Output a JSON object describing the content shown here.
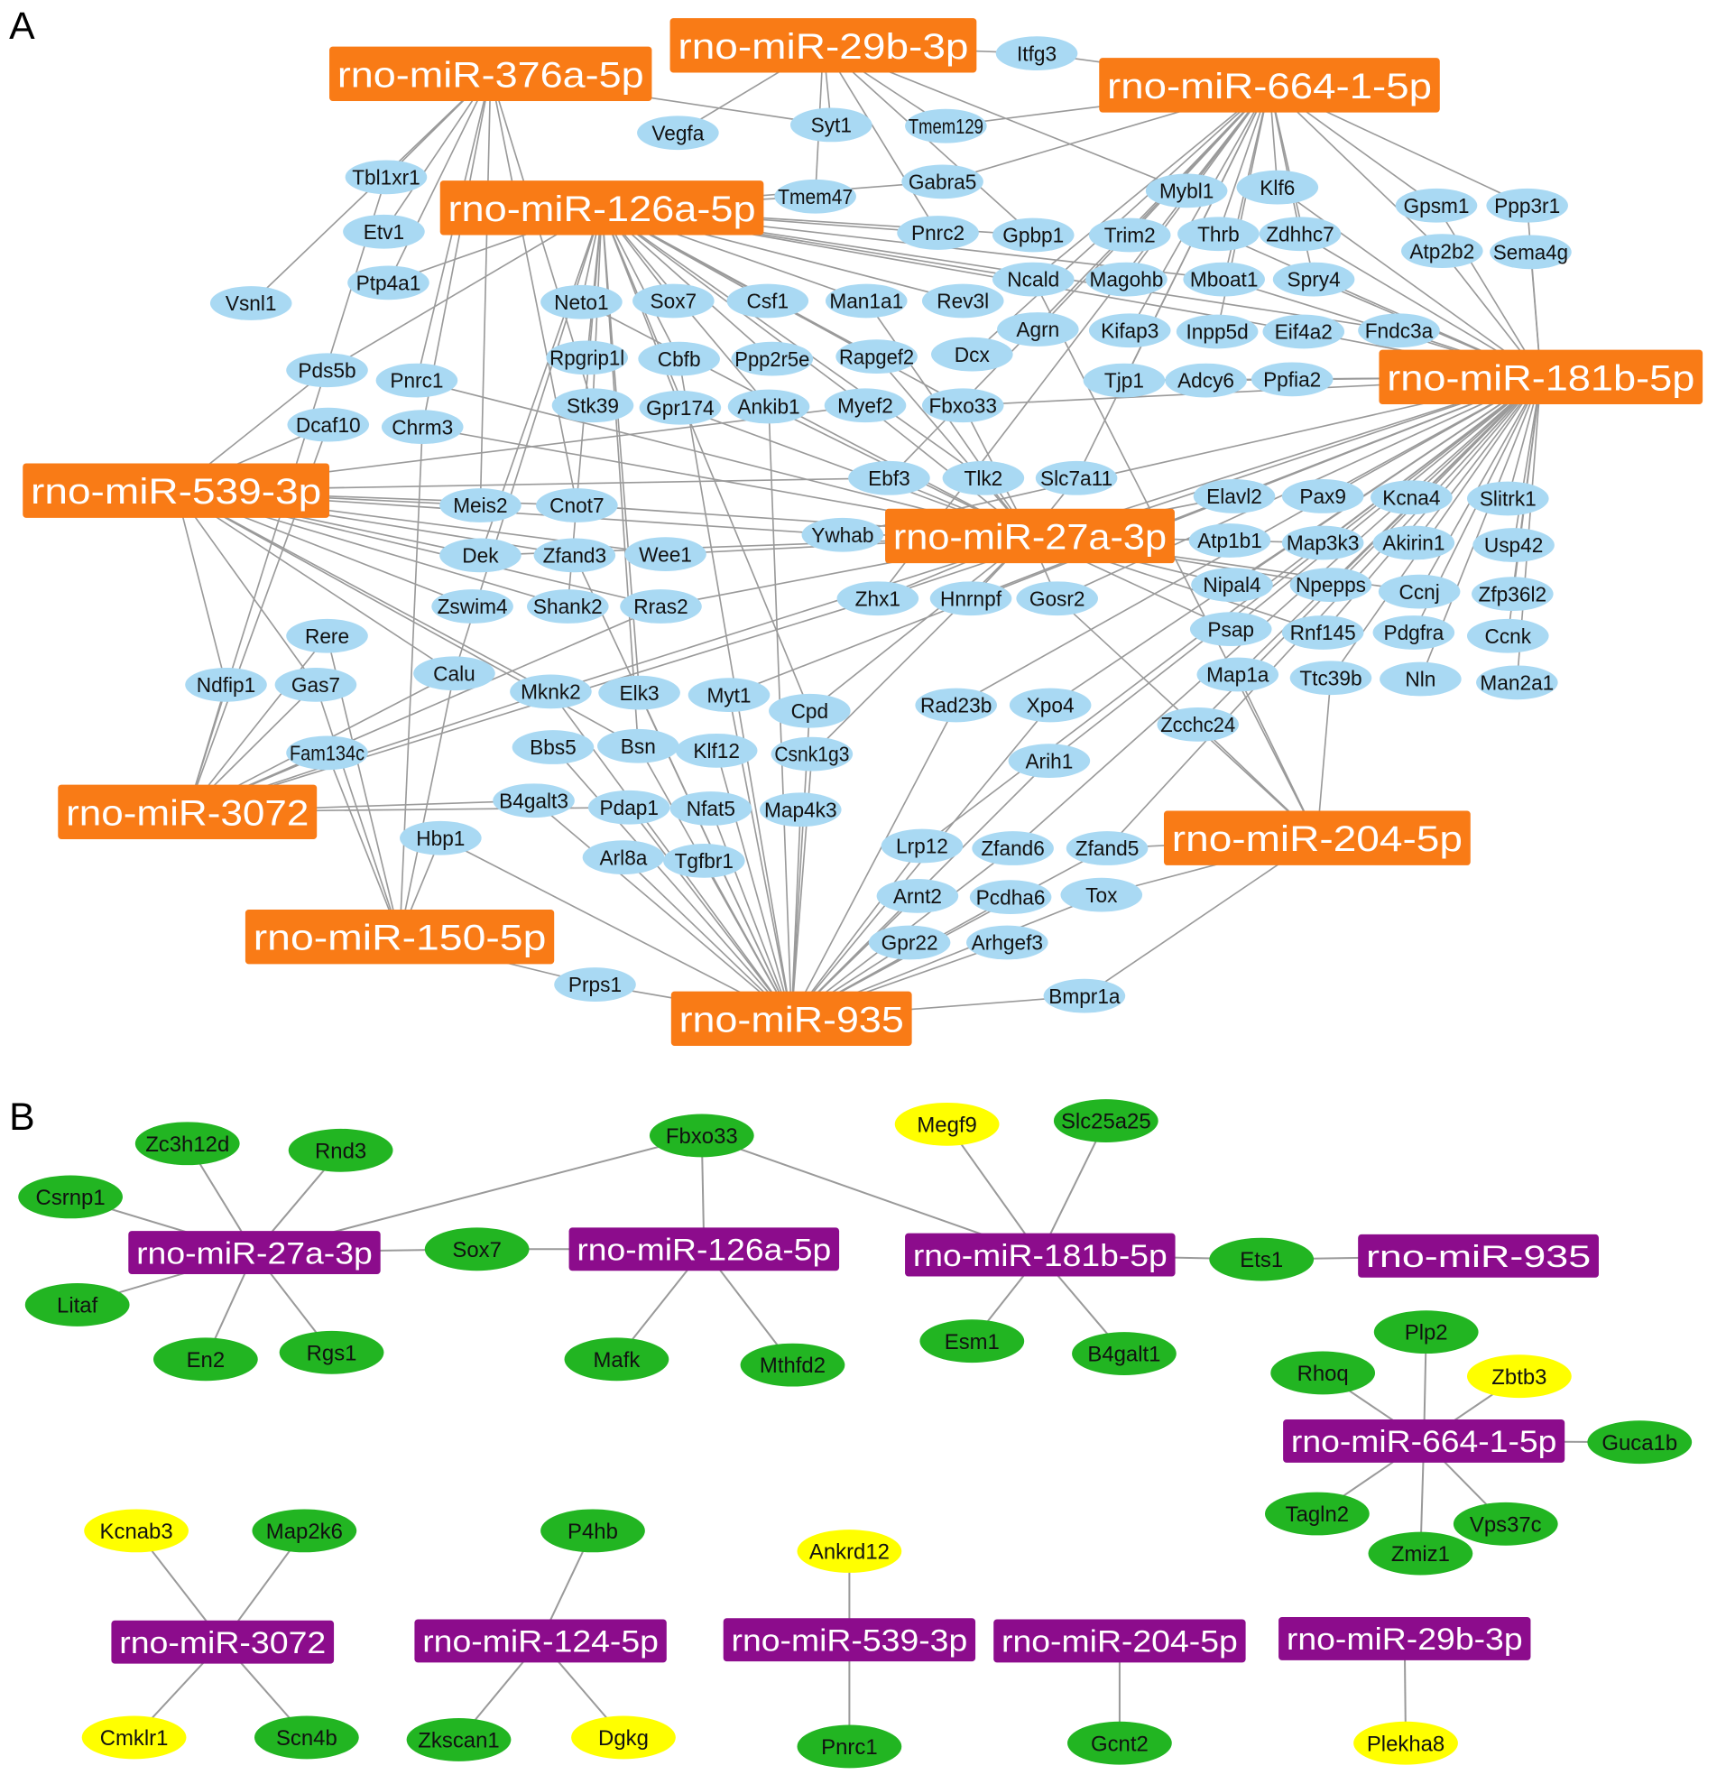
{
  "panels": {
    "A": {
      "label": "A",
      "colors": {
        "mirna_fill": "#f97b16",
        "mirna_text": "#ffffff",
        "gene_fill": "#a9d9f3",
        "gene_text": "#111111",
        "edge": "#9a9a9a"
      },
      "mirnas": [
        "rno-miR-376a-5p",
        "rno-miR-29b-3p",
        "rno-miR-664-1-5p",
        "rno-miR-126a-5p",
        "rno-miR-181b-5p",
        "rno-miR-539-3p",
        "rno-miR-27a-3p",
        "rno-miR-3072",
        "rno-miR-204-5p",
        "rno-miR-150-5p",
        "rno-miR-935"
      ],
      "genes": [
        "Itfg3",
        "Vegfa",
        "Syt1",
        "Tmem129",
        "Tbl1xr1",
        "Gabra5",
        "Tmem47",
        "Mybl1",
        "Klf6",
        "Gpsm1",
        "Ppp3r1",
        "Etv1",
        "Pnrc2",
        "Gpbp1",
        "Trim2",
        "Thrb",
        "Zdhhc7",
        "Atp2b2",
        "Sema4g",
        "Ptp4a1",
        "Ncald",
        "Magohb",
        "Mboat1",
        "Spry4",
        "Vsnl1",
        "Neto1",
        "Sox7",
        "Csf1",
        "Man1a1",
        "Rev3l",
        "Agrn",
        "Kifap3",
        "Inpp5d",
        "Eif4a2",
        "Fndc3a",
        "Rpgrip1l",
        "Cbfb",
        "Ppp2r5e",
        "Rapgef2",
        "Dcx",
        "Pds5b",
        "Pnrc1",
        "Tjp1",
        "Adcy6",
        "Ppfia2",
        "Stk39",
        "Gpr174",
        "Ankib1",
        "Myef2",
        "Fbxo33",
        "Dcaf10",
        "Chrm3",
        "Ebf3",
        "Tlk2",
        "Slc7a11",
        "Meis2",
        "Cnot7",
        "Elavl2",
        "Pax9",
        "Kcna4",
        "Slitrk1",
        "Ywhab",
        "Atp1b1",
        "Map3k3",
        "Akirin1",
        "Usp42",
        "Dek",
        "Zfand3",
        "Wee1",
        "Nipal4",
        "Npepps",
        "Ccnj",
        "Zfp36l2",
        "Zswim4",
        "Shank2",
        "Rras2",
        "Zhx1",
        "Hnrnpf",
        "Gosr2",
        "Psap",
        "Rnf145",
        "Pdgfra",
        "Ccnk",
        "Rere",
        "Calu",
        "Ndfip1",
        "Gas7",
        "Mknk2",
        "Elk3",
        "Myt1",
        "Map1a",
        "Ttc39b",
        "Nln",
        "Man2a1",
        "Cpd",
        "Rad23b",
        "Xpo4",
        "Zcchc24",
        "Fam134c",
        "Bbs5",
        "Bsn",
        "Klf12",
        "Csnk1g3",
        "Arih1",
        "B4galt3",
        "Pdap1",
        "Nfat5",
        "Map4k3",
        "Hbp1",
        "Lrp12",
        "Zfand6",
        "Zfand5",
        "Arl8a",
        "Tgfbr1",
        "Arnt2",
        "Pcdha6",
        "Tox",
        "Gpr22",
        "Arhgef3",
        "Prps1",
        "Bmpr1a"
      ],
      "edges": {
        "rno-miR-29b-3p": [
          "Itfg3",
          "Syt1",
          "Vegfa",
          "Tmem129",
          "Pnrc2",
          "Gpbp1",
          "Tmem47",
          "Mybl1"
        ],
        "rno-miR-376a-5p": [
          "Tbl1xr1",
          "Etv1",
          "Vsnl1",
          "Syt1",
          "Pnrc1",
          "Chrm3",
          "Stk39",
          "Ptp4a1",
          "Cnot7",
          "Meis2"
        ],
        "rno-miR-664-1-5p": [
          "Itfg3",
          "Tmem129",
          "Gabra5",
          "Mybl1",
          "Klf6",
          "Gpsm1",
          "Trim2",
          "Thrb",
          "Zdhhc7",
          "Ncald",
          "Magohb",
          "Mboat1",
          "Spry4",
          "Kifap3",
          "Inpp5d",
          "Tjp1",
          "Atp2b2",
          "Ppp3r1",
          "Agrn",
          "Dcx",
          "Ebf3",
          "Slc7a11",
          "Zhx1"
        ],
        "rno-miR-126a-5p": [
          "Tmem47",
          "Gabra5",
          "Neto1",
          "Sox7",
          "Csf1",
          "Man1a1",
          "Rev3l",
          "Rpgrip1l",
          "Cbfb",
          "Ppp2r5e",
          "Rapgef2",
          "Stk39",
          "Gpr174",
          "Ankib1",
          "Myef2",
          "Fbxo33",
          "Pnrc2",
          "Gpbp1",
          "Ncald",
          "Mboat1",
          "Fndc3a",
          "Eif4a2",
          "Tlk2",
          "Elk3",
          "Bsn",
          "Cpd",
          "Calu",
          "Shank2",
          "Ptp4a1",
          "Pds5b",
          "Dek"
        ],
        "rno-miR-181b-5p": [
          "Gpsm1",
          "Ppp3r1",
          "Atp2b2",
          "Sema4g",
          "Spry4",
          "Fndc3a",
          "Eif4a2",
          "Ppfia2",
          "Mboat1",
          "Zdhhc7",
          "Thrb",
          "Klf6",
          "Pax9",
          "Kcna4",
          "Slitrk1",
          "Akirin1",
          "Usp42",
          "Zfp36l2",
          "Ccnj",
          "Ccnk",
          "Pdgfra",
          "Man2a1",
          "Nln",
          "Ttc39b",
          "Npepps",
          "Nipal4",
          "Map3k3",
          "Elavl2",
          "Tjp1",
          "Adcy6",
          "Fbxo33",
          "Zhx1",
          "Hnrnpf",
          "Gosr2",
          "Map1a",
          "Psap",
          "Rnf145",
          "Ywhab",
          "Zcchc24",
          "Mknk2",
          "Myt1",
          "Rad23b",
          "Zfand6",
          "Xpo4",
          "Zfand5",
          "Lrp12",
          "Arih1"
        ],
        "rno-miR-539-3p": [
          "Pds5b",
          "Dcaf10",
          "Meis2",
          "Cnot7",
          "Dek",
          "Zfand3",
          "Wee1",
          "Ywhab",
          "Zswim4",
          "Calu",
          "Mknk2",
          "Ndfip1",
          "Gas7",
          "Bsn",
          "Shank2",
          "Rras2",
          "Ebf3",
          "Myef2"
        ],
        "rno-miR-27a-3p": [
          "Ebf3",
          "Tlk2",
          "Slc7a11",
          "Ywhab",
          "Zhx1",
          "Hnrnpf",
          "Gosr2",
          "Elavl2",
          "Atp1b1",
          "Map3k3",
          "Nipal4",
          "Npepps",
          "Psap",
          "Rnf145",
          "Rras2",
          "Wee1",
          "Cnot7",
          "Dek",
          "Myef2",
          "Fbxo33",
          "Ankib1",
          "Man1a1",
          "Neto1",
          "Chrm3",
          "Pnrc1",
          "Gpr174",
          "Rapgef2",
          "Ccnj",
          "Cpd",
          "Csnk1g3"
        ],
        "rno-miR-3072": [
          "Ndfip1",
          "Rere",
          "Fam134c",
          "Gas7",
          "Calu",
          "Mknk2",
          "B4galt3",
          "Rras2",
          "Pdap1",
          "Zhx1",
          "Tbl1xr1",
          "Dcaf10"
        ],
        "rno-miR-204-5p": [
          "Zfand5",
          "Ttc39b",
          "Map1a",
          "Gosr2",
          "Bmpr1a",
          "Zcchc24",
          "Tox",
          "Ncald"
        ],
        "rno-miR-150-5p": [
          "Gas7",
          "Calu",
          "Hbp1",
          "Prps1",
          "Fam134c",
          "Rere",
          "Chrm3"
        ],
        "rno-miR-935": [
          "Prps1",
          "Bmpr1a",
          "Hbp1",
          "Arl8a",
          "Tgfbr1",
          "Pdap1",
          "Nfat5",
          "Map4k3",
          "Bbs5",
          "Bsn",
          "Klf12",
          "Csnk1g3",
          "Gpr22",
          "Arhgef3",
          "Arnt2",
          "Pcdha6",
          "Tox",
          "Lrp12",
          "Zfand6",
          "Zfand5",
          "Arih1",
          "Xpo4",
          "Cpd",
          "Myt1",
          "Elk3",
          "Mknk2",
          "Rad23b",
          "Cbfb",
          "Zfand3",
          "Ankib1",
          "B4galt3"
        ]
      }
    },
    "B": {
      "label": "B",
      "colors": {
        "mirna_fill": "#8c0c8c",
        "mirna_text": "#ffffff",
        "gene_green": "#22b522",
        "gene_yellow": "#ffff00",
        "gene_text": "#111111",
        "edge": "#9a9a9a"
      },
      "mirnas": [
        "rno-miR-27a-3p",
        "rno-miR-126a-5p",
        "rno-miR-181b-5p",
        "rno-miR-935",
        "rno-miR-664-1-5p",
        "rno-miR-3072",
        "rno-miR-124-5p",
        "rno-miR-539-3p",
        "rno-miR-204-5p",
        "rno-miR-29b-3p"
      ],
      "genes_green": [
        "Zc3h12d",
        "Rnd3",
        "Csrnp1",
        "Litaf",
        "En2",
        "Rgs1",
        "Sox7",
        "Fbxo33",
        "Mafk",
        "Mthfd2",
        "Slc25a25",
        "Esm1",
        "B4galt1",
        "Ets1",
        "Plp2",
        "Rhoq",
        "Guca1b",
        "Tagln2",
        "Vps37c",
        "Zmiz1",
        "Map2k6",
        "Scn4b",
        "P4hb",
        "Zkscan1",
        "Pnrc1",
        "Gcnt2"
      ],
      "genes_yellow": [
        "Megf9",
        "Zbtb3",
        "Kcnab3",
        "Cmklr1",
        "Dgkg",
        "Ankrd12",
        "Plekha8"
      ],
      "edges": {
        "rno-miR-27a-3p": [
          "Zc3h12d",
          "Rnd3",
          "Csrnp1",
          "Litaf",
          "En2",
          "Rgs1",
          "Sox7",
          "Fbxo33"
        ],
        "rno-miR-126a-5p": [
          "Sox7",
          "Fbxo33",
          "Mafk",
          "Mthfd2"
        ],
        "rno-miR-181b-5p": [
          "Fbxo33",
          "Megf9",
          "Slc25a25",
          "Esm1",
          "B4galt1",
          "Ets1"
        ],
        "rno-miR-935": [
          "Ets1"
        ],
        "rno-miR-664-1-5p": [
          "Plp2",
          "Rhoq",
          "Zbtb3",
          "Guca1b",
          "Tagln2",
          "Vps37c",
          "Zmiz1"
        ],
        "rno-miR-3072": [
          "Kcnab3",
          "Map2k6",
          "Cmklr1",
          "Scn4b"
        ],
        "rno-miR-124-5p": [
          "P4hb",
          "Zkscan1",
          "Dgkg"
        ],
        "rno-miR-539-3p": [
          "Ankrd12",
          "Pnrc1"
        ],
        "rno-miR-204-5p": [
          "Gcnt2"
        ],
        "rno-miR-29b-3p": [
          "Plekha8"
        ]
      }
    }
  }
}
